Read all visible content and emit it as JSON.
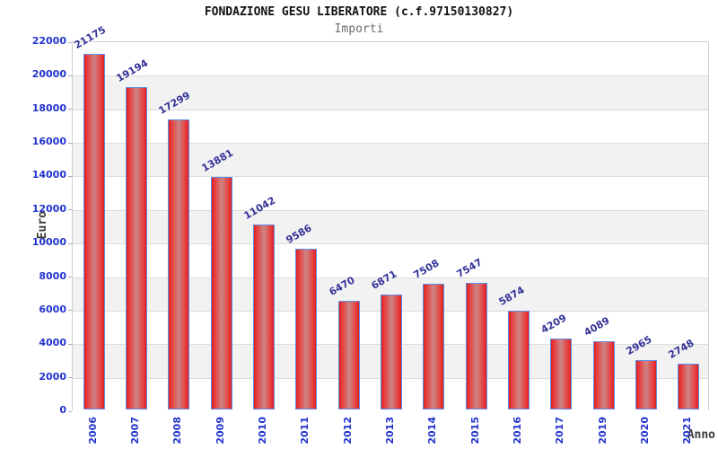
{
  "chart_data": {
    "type": "bar",
    "title": "FONDAZIONE GESU LIBERATORE (c.f.97150130827)",
    "subtitle": "Importi",
    "xlabel": "Anno",
    "ylabel": "Euro",
    "categories": [
      "2006",
      "2007",
      "2008",
      "2009",
      "2010",
      "2011",
      "2012",
      "2013",
      "2014",
      "2015",
      "2016",
      "2017",
      "2019",
      "2020",
      "2021"
    ],
    "values": [
      21175,
      19194,
      17299,
      13881,
      11042,
      9586,
      6470,
      6871,
      7508,
      7547,
      5874,
      4209,
      4089,
      2965,
      2748
    ],
    "ylim": [
      0,
      22000
    ],
    "yticks": [
      0,
      2000,
      4000,
      6000,
      8000,
      10000,
      12000,
      14000,
      16000,
      18000,
      20000,
      22000
    ],
    "grid": true,
    "legend": "none",
    "band_fill_alternating": [
      "#ffffff",
      "#f2f2f2"
    ],
    "colors": {
      "bar_edge": "#d92121",
      "bar_center": "#cd8585",
      "bar_border": "#5e8fe8",
      "value_label": "#333399",
      "axis_tick_label": "#2233cc",
      "grid_line": "#dcdcdc",
      "title": "#111111",
      "subtitle": "#6e6e6e"
    }
  }
}
